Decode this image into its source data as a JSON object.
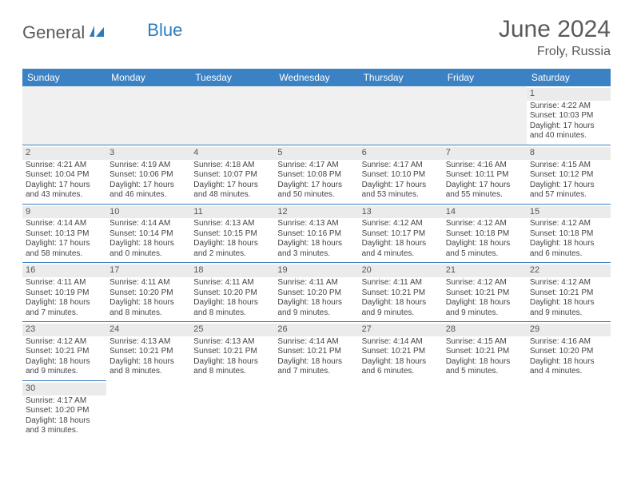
{
  "brand": {
    "part1": "General",
    "part2": "Blue"
  },
  "title": "June 2024",
  "location": "Froly, Russia",
  "colors": {
    "header_bg": "#3b82c4",
    "header_text": "#ffffff",
    "border": "#3b82c4",
    "daynum_bg": "#ebebeb",
    "logo_gray": "#5a5a5a",
    "logo_blue": "#2b7dc0"
  },
  "weekdays": [
    "Sunday",
    "Monday",
    "Tuesday",
    "Wednesday",
    "Thursday",
    "Friday",
    "Saturday"
  ],
  "weeks": [
    [
      {
        "n": "",
        "l1": "",
        "l2": "",
        "l3": "",
        "l4": ""
      },
      {
        "n": "",
        "l1": "",
        "l2": "",
        "l3": "",
        "l4": ""
      },
      {
        "n": "",
        "l1": "",
        "l2": "",
        "l3": "",
        "l4": ""
      },
      {
        "n": "",
        "l1": "",
        "l2": "",
        "l3": "",
        "l4": ""
      },
      {
        "n": "",
        "l1": "",
        "l2": "",
        "l3": "",
        "l4": ""
      },
      {
        "n": "",
        "l1": "",
        "l2": "",
        "l3": "",
        "l4": ""
      },
      {
        "n": "1",
        "l1": "Sunrise: 4:22 AM",
        "l2": "Sunset: 10:03 PM",
        "l3": "Daylight: 17 hours",
        "l4": "and 40 minutes."
      }
    ],
    [
      {
        "n": "2",
        "l1": "Sunrise: 4:21 AM",
        "l2": "Sunset: 10:04 PM",
        "l3": "Daylight: 17 hours",
        "l4": "and 43 minutes."
      },
      {
        "n": "3",
        "l1": "Sunrise: 4:19 AM",
        "l2": "Sunset: 10:06 PM",
        "l3": "Daylight: 17 hours",
        "l4": "and 46 minutes."
      },
      {
        "n": "4",
        "l1": "Sunrise: 4:18 AM",
        "l2": "Sunset: 10:07 PM",
        "l3": "Daylight: 17 hours",
        "l4": "and 48 minutes."
      },
      {
        "n": "5",
        "l1": "Sunrise: 4:17 AM",
        "l2": "Sunset: 10:08 PM",
        "l3": "Daylight: 17 hours",
        "l4": "and 50 minutes."
      },
      {
        "n": "6",
        "l1": "Sunrise: 4:17 AM",
        "l2": "Sunset: 10:10 PM",
        "l3": "Daylight: 17 hours",
        "l4": "and 53 minutes."
      },
      {
        "n": "7",
        "l1": "Sunrise: 4:16 AM",
        "l2": "Sunset: 10:11 PM",
        "l3": "Daylight: 17 hours",
        "l4": "and 55 minutes."
      },
      {
        "n": "8",
        "l1": "Sunrise: 4:15 AM",
        "l2": "Sunset: 10:12 PM",
        "l3": "Daylight: 17 hours",
        "l4": "and 57 minutes."
      }
    ],
    [
      {
        "n": "9",
        "l1": "Sunrise: 4:14 AM",
        "l2": "Sunset: 10:13 PM",
        "l3": "Daylight: 17 hours",
        "l4": "and 58 minutes."
      },
      {
        "n": "10",
        "l1": "Sunrise: 4:14 AM",
        "l2": "Sunset: 10:14 PM",
        "l3": "Daylight: 18 hours",
        "l4": "and 0 minutes."
      },
      {
        "n": "11",
        "l1": "Sunrise: 4:13 AM",
        "l2": "Sunset: 10:15 PM",
        "l3": "Daylight: 18 hours",
        "l4": "and 2 minutes."
      },
      {
        "n": "12",
        "l1": "Sunrise: 4:13 AM",
        "l2": "Sunset: 10:16 PM",
        "l3": "Daylight: 18 hours",
        "l4": "and 3 minutes."
      },
      {
        "n": "13",
        "l1": "Sunrise: 4:12 AM",
        "l2": "Sunset: 10:17 PM",
        "l3": "Daylight: 18 hours",
        "l4": "and 4 minutes."
      },
      {
        "n": "14",
        "l1": "Sunrise: 4:12 AM",
        "l2": "Sunset: 10:18 PM",
        "l3": "Daylight: 18 hours",
        "l4": "and 5 minutes."
      },
      {
        "n": "15",
        "l1": "Sunrise: 4:12 AM",
        "l2": "Sunset: 10:18 PM",
        "l3": "Daylight: 18 hours",
        "l4": "and 6 minutes."
      }
    ],
    [
      {
        "n": "16",
        "l1": "Sunrise: 4:11 AM",
        "l2": "Sunset: 10:19 PM",
        "l3": "Daylight: 18 hours",
        "l4": "and 7 minutes."
      },
      {
        "n": "17",
        "l1": "Sunrise: 4:11 AM",
        "l2": "Sunset: 10:20 PM",
        "l3": "Daylight: 18 hours",
        "l4": "and 8 minutes."
      },
      {
        "n": "18",
        "l1": "Sunrise: 4:11 AM",
        "l2": "Sunset: 10:20 PM",
        "l3": "Daylight: 18 hours",
        "l4": "and 8 minutes."
      },
      {
        "n": "19",
        "l1": "Sunrise: 4:11 AM",
        "l2": "Sunset: 10:20 PM",
        "l3": "Daylight: 18 hours",
        "l4": "and 9 minutes."
      },
      {
        "n": "20",
        "l1": "Sunrise: 4:11 AM",
        "l2": "Sunset: 10:21 PM",
        "l3": "Daylight: 18 hours",
        "l4": "and 9 minutes."
      },
      {
        "n": "21",
        "l1": "Sunrise: 4:12 AM",
        "l2": "Sunset: 10:21 PM",
        "l3": "Daylight: 18 hours",
        "l4": "and 9 minutes."
      },
      {
        "n": "22",
        "l1": "Sunrise: 4:12 AM",
        "l2": "Sunset: 10:21 PM",
        "l3": "Daylight: 18 hours",
        "l4": "and 9 minutes."
      }
    ],
    [
      {
        "n": "23",
        "l1": "Sunrise: 4:12 AM",
        "l2": "Sunset: 10:21 PM",
        "l3": "Daylight: 18 hours",
        "l4": "and 9 minutes."
      },
      {
        "n": "24",
        "l1": "Sunrise: 4:13 AM",
        "l2": "Sunset: 10:21 PM",
        "l3": "Daylight: 18 hours",
        "l4": "and 8 minutes."
      },
      {
        "n": "25",
        "l1": "Sunrise: 4:13 AM",
        "l2": "Sunset: 10:21 PM",
        "l3": "Daylight: 18 hours",
        "l4": "and 8 minutes."
      },
      {
        "n": "26",
        "l1": "Sunrise: 4:14 AM",
        "l2": "Sunset: 10:21 PM",
        "l3": "Daylight: 18 hours",
        "l4": "and 7 minutes."
      },
      {
        "n": "27",
        "l1": "Sunrise: 4:14 AM",
        "l2": "Sunset: 10:21 PM",
        "l3": "Daylight: 18 hours",
        "l4": "and 6 minutes."
      },
      {
        "n": "28",
        "l1": "Sunrise: 4:15 AM",
        "l2": "Sunset: 10:21 PM",
        "l3": "Daylight: 18 hours",
        "l4": "and 5 minutes."
      },
      {
        "n": "29",
        "l1": "Sunrise: 4:16 AM",
        "l2": "Sunset: 10:20 PM",
        "l3": "Daylight: 18 hours",
        "l4": "and 4 minutes."
      }
    ],
    [
      {
        "n": "30",
        "l1": "Sunrise: 4:17 AM",
        "l2": "Sunset: 10:20 PM",
        "l3": "Daylight: 18 hours",
        "l4": "and 3 minutes."
      },
      {
        "n": "",
        "l1": "",
        "l2": "",
        "l3": "",
        "l4": ""
      },
      {
        "n": "",
        "l1": "",
        "l2": "",
        "l3": "",
        "l4": ""
      },
      {
        "n": "",
        "l1": "",
        "l2": "",
        "l3": "",
        "l4": ""
      },
      {
        "n": "",
        "l1": "",
        "l2": "",
        "l3": "",
        "l4": ""
      },
      {
        "n": "",
        "l1": "",
        "l2": "",
        "l3": "",
        "l4": ""
      },
      {
        "n": "",
        "l1": "",
        "l2": "",
        "l3": "",
        "l4": ""
      }
    ]
  ]
}
